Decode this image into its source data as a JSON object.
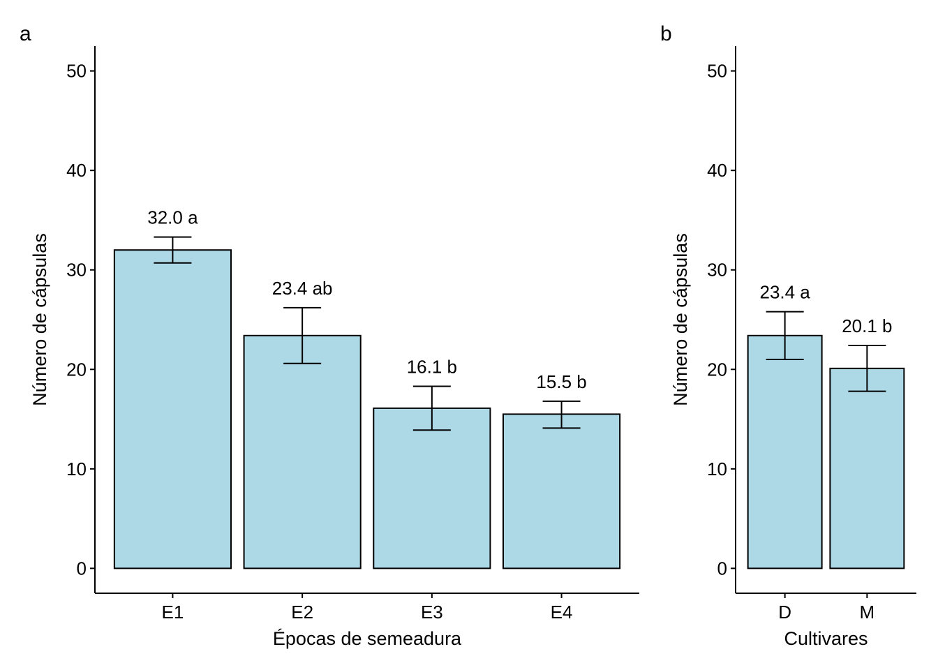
{
  "colors": {
    "bar_fill": "#add8e6",
    "bar_stroke": "#000000",
    "axis": "#000000"
  },
  "chart_data": [
    {
      "panel": "a",
      "type": "bar",
      "xlabel": "Épocas de semeadura",
      "ylabel": "Número de cápsulas",
      "ylim": [
        -2.5,
        52.5
      ],
      "yticks": [
        0,
        10,
        20,
        30,
        40,
        50
      ],
      "grid": false,
      "categories": [
        "E1",
        "E2",
        "E3",
        "E4"
      ],
      "values": [
        32.0,
        23.4,
        16.1,
        15.5
      ],
      "error_low": [
        30.7,
        20.6,
        13.9,
        14.1
      ],
      "error_high": [
        33.3,
        26.2,
        18.3,
        16.8
      ],
      "labels": [
        "32.0 a",
        "23.4 ab",
        "16.1 b",
        "15.5 b"
      ]
    },
    {
      "panel": "b",
      "type": "bar",
      "xlabel": "Cultivares",
      "ylabel": "Número de cápsulas",
      "ylim": [
        -2.5,
        52.5
      ],
      "yticks": [
        0,
        10,
        20,
        30,
        40,
        50
      ],
      "grid": false,
      "categories": [
        "D",
        "M"
      ],
      "values": [
        23.4,
        20.1
      ],
      "error_low": [
        21.0,
        17.8
      ],
      "error_high": [
        25.8,
        22.4
      ],
      "labels": [
        "23.4 a",
        "20.1 b"
      ]
    }
  ]
}
